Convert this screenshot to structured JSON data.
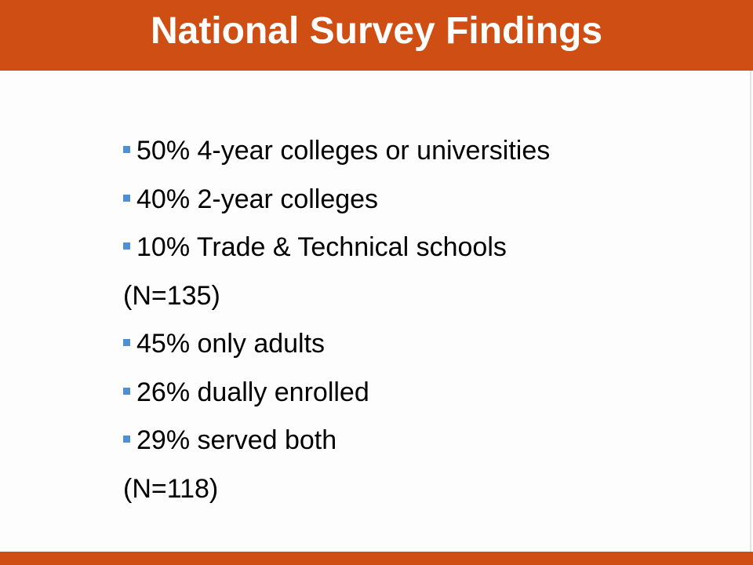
{
  "header": {
    "title": "National Survey Findings"
  },
  "groups": [
    {
      "items": [
        "50% 4-year colleges or universities",
        "40% 2-year colleges",
        "10% Trade & Technical schools"
      ],
      "note": "(N=135)"
    },
    {
      "items": [
        "45% only adults",
        "26% dually enrolled",
        "29% served both"
      ],
      "note": "(N=118)"
    }
  ]
}
